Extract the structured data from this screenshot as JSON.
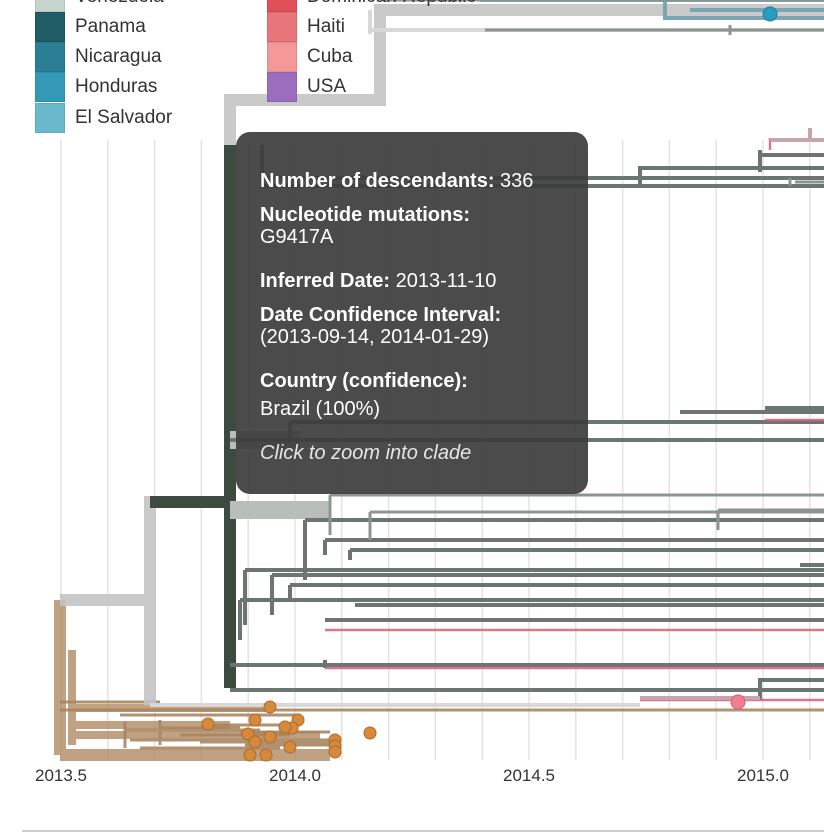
{
  "legend": {
    "left_items": [
      {
        "label": "Venezuela",
        "color": "#c7d5cc"
      },
      {
        "label": "Panama",
        "color": "#1f5c66"
      },
      {
        "label": "Nicaragua",
        "color": "#2a7f95"
      },
      {
        "label": "Honduras",
        "color": "#3399b5"
      },
      {
        "label": "El Salvador",
        "color": "#6ab8cc"
      }
    ],
    "right_items": [
      {
        "label": "Dominican Republic",
        "color": "#e0505a"
      },
      {
        "label": "Haiti",
        "color": "#e87579"
      },
      {
        "label": "Cuba",
        "color": "#f59898"
      },
      {
        "label": "USA",
        "color": "#9b6dbf"
      }
    ]
  },
  "axis": {
    "ticks": [
      "2013.5",
      "2014.0",
      "2014.5",
      "2015.0"
    ]
  },
  "tooltip": {
    "descendants_label": "Number of descendants:",
    "descendants_value": "336",
    "mutations_label": "Nucleotide mutations:",
    "mutations_value": "G9417A",
    "date_label": "Inferred Date:",
    "date_value": "2013-11-10",
    "ci_label": "Date Confidence Interval:",
    "ci_value": "(2013-09-14, 2014-01-29)",
    "country_label": "Country (confidence):",
    "country_value": "Brazil (100%)",
    "hint": "Click to zoom into clade"
  },
  "colors": {
    "brazil_clade": "#3d4a40",
    "grey_branch": "#6b7571",
    "root_branch": "#b08a63",
    "tip_orange": "#d4893c",
    "tip_pink": "#f08090",
    "tip_blue": "#2a9bc0",
    "highlight_grey": "#c4c4c4",
    "red_branch": "#d0607a",
    "gridline": "#e3e3e3"
  }
}
